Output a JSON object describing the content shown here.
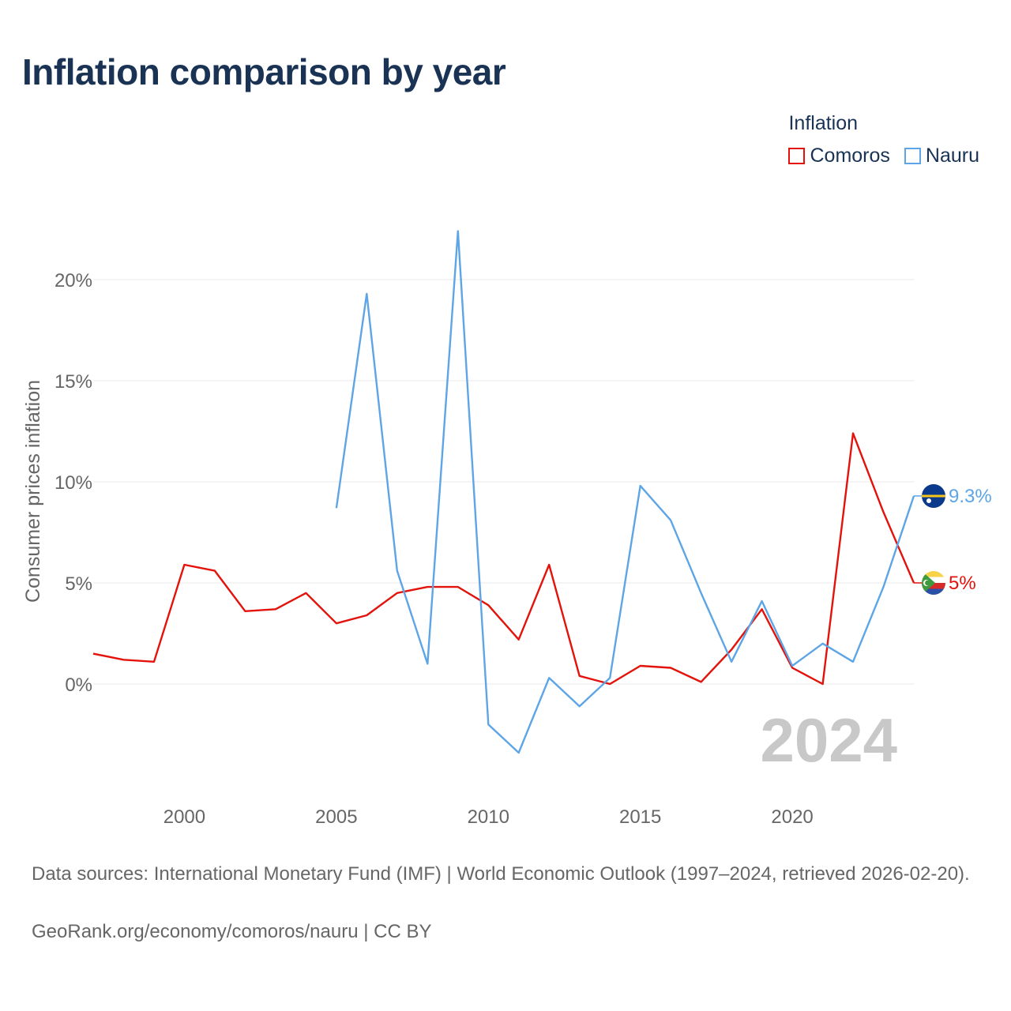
{
  "title": "Inflation comparison by year",
  "legend": {
    "title": "Inflation",
    "items": [
      {
        "label": "Comoros",
        "color": "#e3120b"
      },
      {
        "label": "Nauru",
        "color": "#5da5e6"
      }
    ]
  },
  "year_watermark": "2024",
  "source_text": "Data sources: International Monetary Fund (IMF) | World Economic Outlook (1997–2024, retrieved 2026-02-20).",
  "credit_text": "GeoRank.org/economy/comoros/nauru | CC BY",
  "chart_data": {
    "type": "line",
    "title": "Inflation comparison by year",
    "xlabel": "",
    "ylabel": "Consumer prices inflation",
    "xlim": [
      1997,
      2024
    ],
    "ylim": [
      -5,
      23
    ],
    "x_ticks": [
      2000,
      2005,
      2010,
      2015,
      2020
    ],
    "x_tick_labels": [
      "2000",
      "2005",
      "2010",
      "2015",
      "2020"
    ],
    "y_ticks": [
      0,
      5,
      10,
      15,
      20
    ],
    "y_tick_labels": [
      "0%",
      "5%",
      "10%",
      "15%",
      "20%"
    ],
    "grid": true,
    "legend_position": "top-right",
    "series": [
      {
        "name": "Comoros",
        "color": "#e3120b",
        "x": [
          1997,
          1998,
          1999,
          2000,
          2001,
          2002,
          2003,
          2004,
          2005,
          2006,
          2007,
          2008,
          2009,
          2010,
          2011,
          2012,
          2013,
          2014,
          2015,
          2016,
          2017,
          2018,
          2019,
          2020,
          2021,
          2022,
          2023,
          2024
        ],
        "values": [
          1.5,
          1.2,
          1.1,
          5.9,
          5.6,
          3.6,
          3.7,
          4.5,
          3.0,
          3.4,
          4.5,
          4.8,
          4.8,
          3.9,
          2.2,
          5.9,
          0.4,
          0.0,
          0.9,
          0.8,
          0.1,
          1.7,
          3.7,
          0.8,
          0.0,
          12.4,
          8.5,
          5.0
        ],
        "end_label": "5%"
      },
      {
        "name": "Nauru",
        "color": "#5da5e6",
        "x": [
          2005,
          2006,
          2007,
          2008,
          2009,
          2010,
          2011,
          2012,
          2013,
          2014,
          2015,
          2016,
          2017,
          2018,
          2019,
          2020,
          2021,
          2022,
          2023,
          2024
        ],
        "values": [
          8.7,
          19.3,
          5.6,
          1.0,
          22.4,
          -2.0,
          -3.4,
          0.3,
          -1.1,
          0.3,
          9.8,
          8.1,
          4.5,
          1.1,
          4.1,
          0.9,
          2.0,
          1.1,
          4.8,
          9.3
        ],
        "end_label": "9.3%"
      }
    ]
  }
}
